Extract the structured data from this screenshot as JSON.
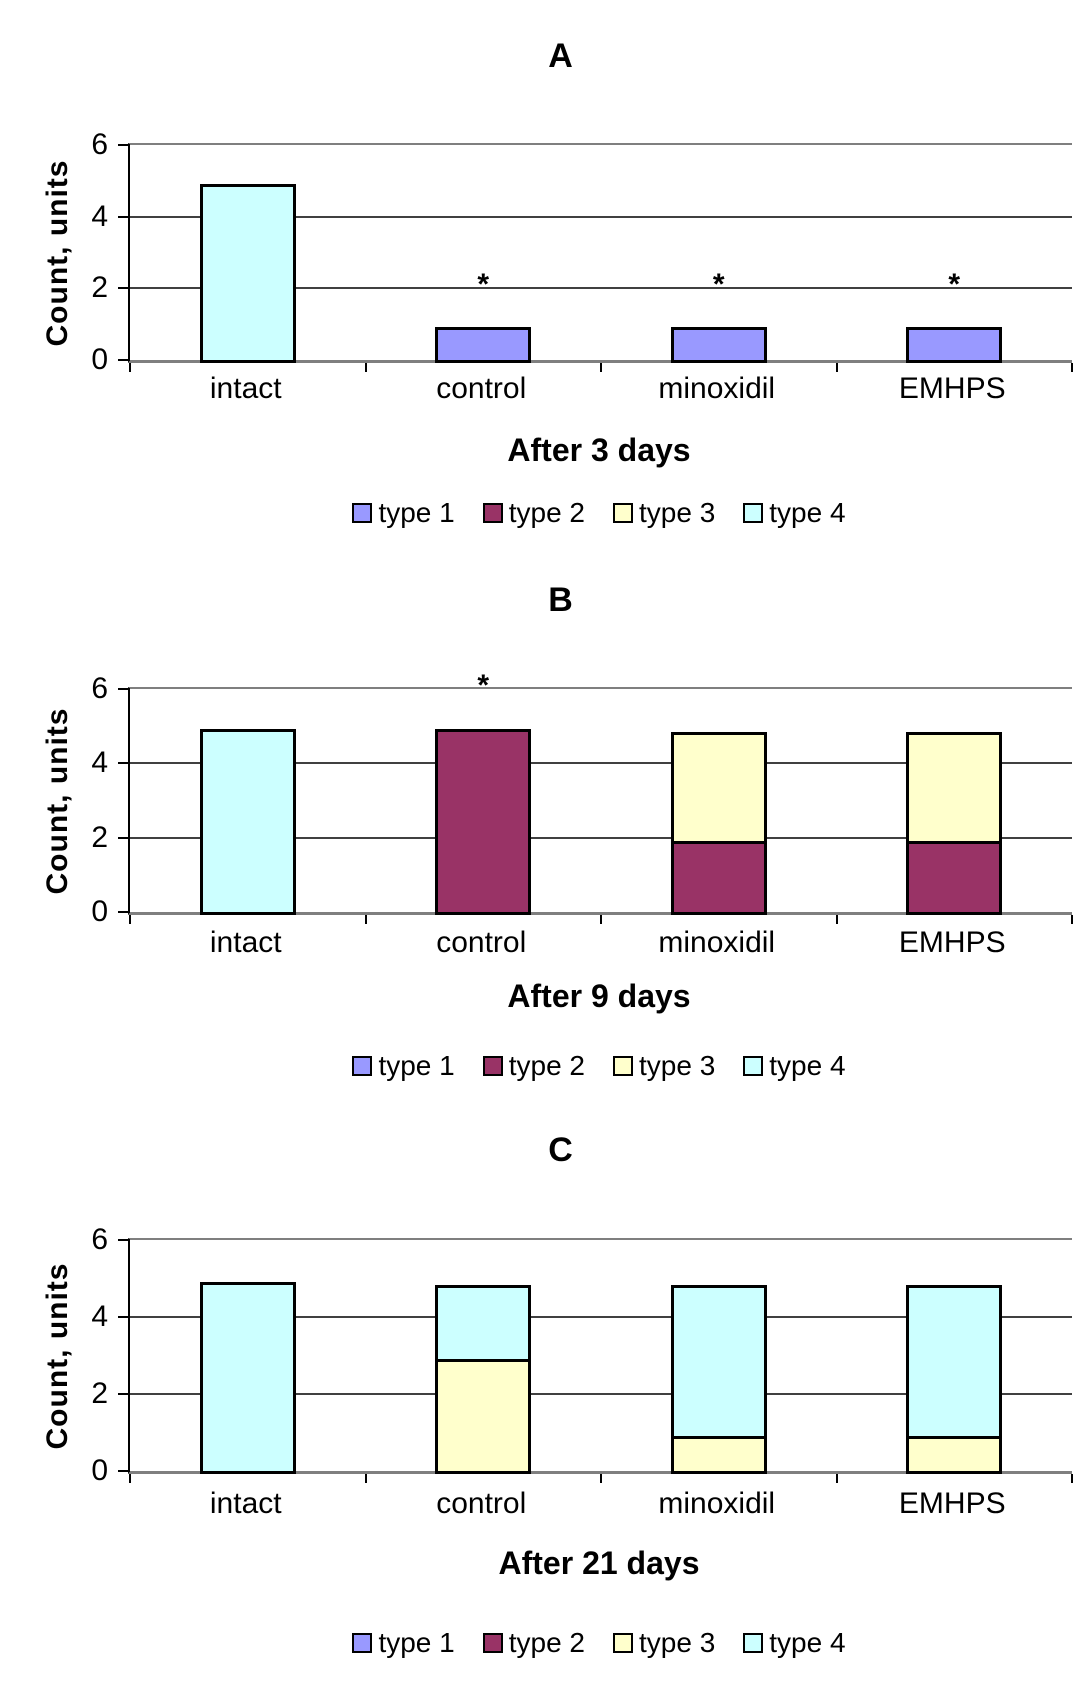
{
  "chart_data": [
    {
      "type": "bar",
      "stacked": true,
      "title": "A",
      "xlabel": "After 3 days",
      "ylabel": "Count, units",
      "ylim": [
        0,
        6
      ],
      "yticks": [
        0,
        2,
        4,
        6
      ],
      "grid": true,
      "legend_position": "bottom",
      "categories": [
        "intact",
        "control",
        "minoxidil",
        "EMHPS"
      ],
      "series": [
        {
          "name": "type 1",
          "color": "#9999FF",
          "values": [
            0,
            1,
            1,
            1
          ]
        },
        {
          "name": "type 2",
          "color": "#993366",
          "values": [
            0,
            0,
            0,
            0
          ]
        },
        {
          "name": "type 3",
          "color": "#FFFFCC",
          "values": [
            0,
            0,
            0,
            0
          ]
        },
        {
          "name": "type 4",
          "color": "#CCFFFF",
          "values": [
            5,
            0,
            0,
            0
          ]
        }
      ],
      "annotations": [
        {
          "category": "control",
          "text": "*",
          "y": 2
        },
        {
          "category": "minoxidil",
          "text": "*",
          "y": 2
        },
        {
          "category": "EMHPS",
          "text": "*",
          "y": 2
        }
      ]
    },
    {
      "type": "bar",
      "stacked": true,
      "title": "B",
      "xlabel": "After 9 days",
      "ylabel": "Count, units",
      "ylim": [
        0,
        6
      ],
      "yticks": [
        0,
        2,
        4,
        6
      ],
      "grid": true,
      "legend_position": "bottom",
      "categories": [
        "intact",
        "control",
        "minoxidil",
        "EMHPS"
      ],
      "series": [
        {
          "name": "type 1",
          "color": "#9999FF",
          "values": [
            0,
            0,
            0,
            0
          ]
        },
        {
          "name": "type 2",
          "color": "#993366",
          "values": [
            0,
            5,
            2,
            2
          ]
        },
        {
          "name": "type 3",
          "color": "#FFFFCC",
          "values": [
            0,
            0,
            3,
            3
          ]
        },
        {
          "name": "type 4",
          "color": "#CCFFFF",
          "values": [
            5,
            0,
            0,
            0
          ]
        }
      ],
      "annotations": [
        {
          "category": "control",
          "text": "*",
          "y": 6
        }
      ]
    },
    {
      "type": "bar",
      "stacked": true,
      "title": "C",
      "xlabel": "After 21 days",
      "ylabel": "Count, units",
      "ylim": [
        0,
        6
      ],
      "yticks": [
        0,
        2,
        4,
        6
      ],
      "grid": true,
      "legend_position": "bottom",
      "categories": [
        "intact",
        "control",
        "minoxidil",
        "EMHPS"
      ],
      "series": [
        {
          "name": "type 1",
          "color": "#9999FF",
          "values": [
            0,
            0,
            0,
            0
          ]
        },
        {
          "name": "type 2",
          "color": "#993366",
          "values": [
            0,
            0,
            0,
            0
          ]
        },
        {
          "name": "type 3",
          "color": "#FFFFCC",
          "values": [
            0,
            3,
            1,
            1
          ]
        },
        {
          "name": "type 4",
          "color": "#CCFFFF",
          "values": [
            5,
            2,
            4,
            4
          ]
        }
      ],
      "annotations": []
    }
  ]
}
